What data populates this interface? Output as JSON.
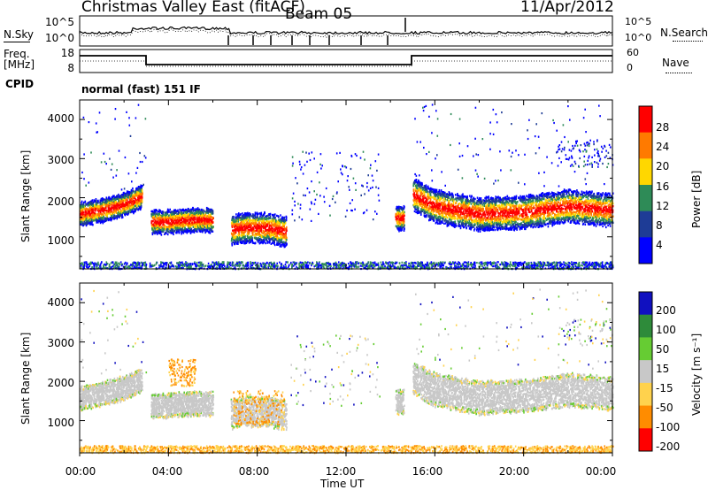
{
  "header": {
    "station": "Christmas Valley East (fitACF)",
    "beam": "Beam 05",
    "date": "11/Apr/2012"
  },
  "side_labels": {
    "nsky": "N.Sky",
    "nsearch": "N.Search",
    "freq": "Freq.",
    "freq_unit": "[MHz]",
    "nave": "Nave",
    "cpid": "CPID",
    "mode_text": "normal (fast) 151 IF"
  },
  "noise_panel": {
    "left_ticks": [
      "10^5",
      "10^0"
    ],
    "right_ticks": [
      "10^5",
      "10^0"
    ]
  },
  "freq_panel": {
    "left_ticks": [
      "18",
      "8"
    ],
    "right_ticks": [
      "60",
      "0"
    ]
  },
  "chart_data": [
    {
      "type": "heatmap",
      "title": "Power",
      "ylabel": "Slant Range [km]",
      "xlabel": "",
      "ylim": [
        180,
        4500
      ],
      "x_ticks": [
        "00:00",
        "04:00",
        "08:00",
        "12:00",
        "16:00",
        "20:00",
        "00:00"
      ],
      "y_ticks": [
        "1000",
        "2000",
        "3000",
        "4000"
      ],
      "colorbar": {
        "label": "Power [dB]",
        "ticks": [
          "28",
          "24",
          "20",
          "16",
          "12",
          "8",
          "4"
        ],
        "colors": [
          "#ff0000",
          "#ff7a00",
          "#ffd700",
          "#2e8b57",
          "#1e3c96",
          "#0000ff"
        ]
      },
      "series": [
        {
          "x": [
            0,
            1,
            2,
            2.8
          ],
          "y": [
            1600,
            1700,
            1850,
            2050
          ]
        },
        {
          "x": [
            3.2,
            4,
            5,
            6
          ],
          "y": [
            1400,
            1400,
            1450,
            1450
          ]
        },
        {
          "x": [
            6.8,
            7.5,
            8.5,
            9.3
          ],
          "y": [
            1200,
            1250,
            1250,
            1150
          ]
        },
        {
          "x": [
            14.2,
            14.6
          ],
          "y": [
            1500,
            1500
          ]
        },
        {
          "x": [
            15,
            16,
            18,
            20,
            22,
            24
          ],
          "y": [
            2100,
            1800,
            1600,
            1650,
            1800,
            1700
          ]
        }
      ]
    },
    {
      "type": "heatmap",
      "title": "Velocity",
      "ylabel": "Slant Range [km]",
      "xlabel": "Time UT",
      "ylim": [
        180,
        4500
      ],
      "x_ticks": [
        "00:00",
        "04:00",
        "08:00",
        "12:00",
        "16:00",
        "20:00",
        "00:00"
      ],
      "y_ticks": [
        "1000",
        "2000",
        "3000",
        "4000"
      ],
      "colorbar": {
        "label": "Velocity [m s⁻¹]",
        "ticks": [
          "200",
          "100",
          "50",
          "15",
          "-15",
          "-50",
          "-100",
          "-200"
        ],
        "colors": [
          "#1010c0",
          "#2e8b3a",
          "#66cc33",
          "#c8c8c8",
          "#ffd24d",
          "#ff8c00",
          "#ff0000"
        ]
      }
    }
  ]
}
